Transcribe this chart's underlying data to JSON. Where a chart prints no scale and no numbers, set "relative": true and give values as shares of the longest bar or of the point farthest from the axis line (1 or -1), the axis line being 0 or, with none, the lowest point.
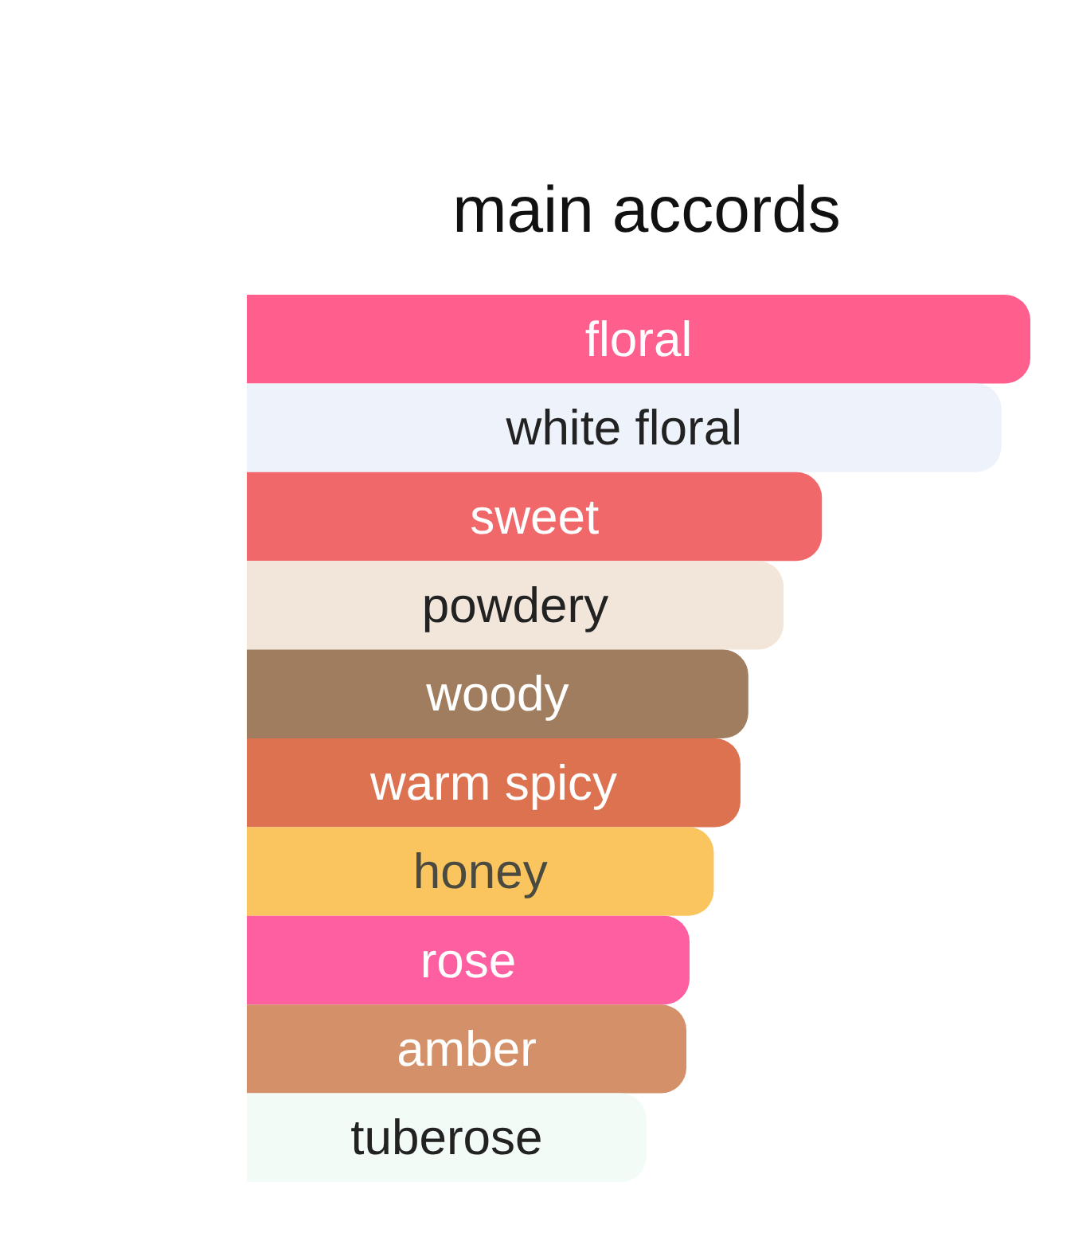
{
  "chart_data": {
    "type": "bar",
    "title": "main accords",
    "orientation": "horizontal",
    "relative": true,
    "categories": [
      "floral",
      "white floral",
      "sweet",
      "powdery",
      "woody",
      "warm spicy",
      "honey",
      "rose",
      "amber",
      "tuberose"
    ],
    "values": [
      1,
      0.963,
      0.734,
      0.685,
      0.64,
      0.63,
      0.596,
      0.565,
      0.561,
      0.51
    ],
    "colors": [
      "#fe5f8c",
      "#edf2fb",
      "#f0686a",
      "#f2e5da",
      "#a07d5e",
      "#dc7250",
      "#fac55e",
      "#fe5fa0",
      "#d49068",
      "#f3fbf7"
    ]
  }
}
